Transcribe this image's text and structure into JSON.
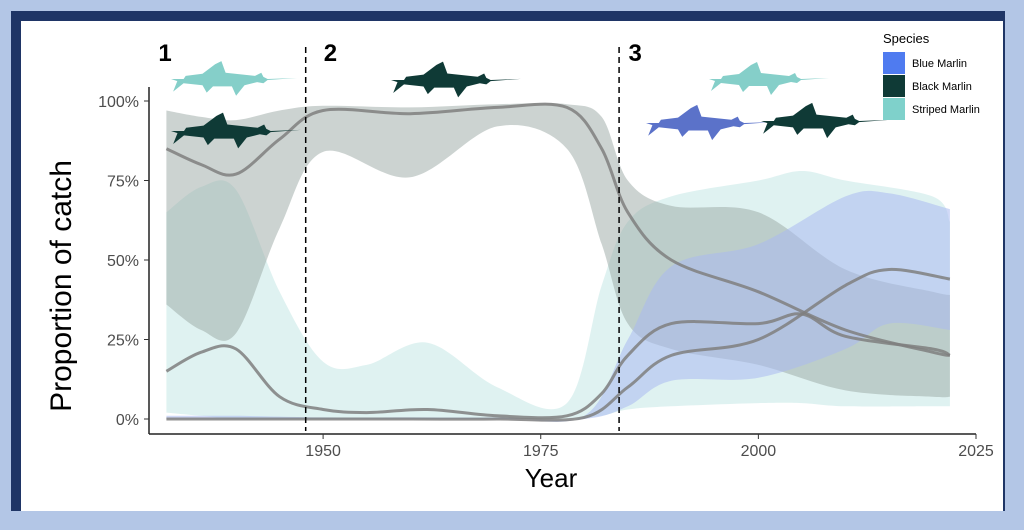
{
  "chart_data": {
    "type": "area",
    "title": "",
    "xlabel": "Year",
    "ylabel": "Proportion of catch",
    "xlim": [
      1930,
      2025
    ],
    "ylim": [
      0,
      1
    ],
    "x_ticks": [
      1950,
      1975,
      2000,
      2025
    ],
    "x_tick_labels": [
      "1950",
      "1975",
      "2000",
      "2025"
    ],
    "y_ticks": [
      0,
      0.25,
      0.5,
      0.75,
      1.0
    ],
    "y_tick_labels": [
      "0%",
      "25%",
      "50%",
      "75%",
      "100%"
    ],
    "grid": false,
    "legend": {
      "title": "Species",
      "placement": "top-right",
      "entries": [
        "Blue Marlin",
        "Black Marlin",
        "Striped Marlin"
      ]
    },
    "period_breaks": [
      1948,
      1984
    ],
    "period_labels": [
      {
        "label": "1",
        "x": 1932
      },
      {
        "label": "2",
        "x": 1951
      },
      {
        "label": "3",
        "x": 1986
      }
    ],
    "series": [
      {
        "name": "Blue Marlin",
        "color": "#5b7fe0",
        "x": [
          1932,
          1940,
          1950,
          1960,
          1970,
          1980,
          1985,
          1990,
          2000,
          2010,
          2015,
          2022
        ],
        "mean": [
          0.0,
          0.0,
          0.0,
          0.0,
          0.0,
          0.005,
          0.1,
          0.2,
          0.25,
          0.42,
          0.47,
          0.44
        ],
        "lower": [
          0.0,
          0.0,
          0.0,
          0.0,
          0.0,
          0.0,
          0.04,
          0.12,
          0.13,
          0.22,
          0.3,
          0.28
        ],
        "upper": [
          0.01,
          0.01,
          0.005,
          0.005,
          0.005,
          0.01,
          0.25,
          0.48,
          0.55,
          0.7,
          0.71,
          0.66
        ]
      },
      {
        "name": "Black Marlin",
        "color": "#24403f",
        "x": [
          1932,
          1936,
          1940,
          1945,
          1950,
          1960,
          1970,
          1978,
          1982,
          1985,
          1990,
          2000,
          2010,
          2020,
          2022
        ],
        "mean": [
          0.85,
          0.8,
          0.77,
          0.88,
          0.97,
          0.96,
          0.98,
          0.98,
          0.85,
          0.65,
          0.5,
          0.4,
          0.28,
          0.21,
          0.2
        ],
        "lower": [
          0.36,
          0.28,
          0.27,
          0.6,
          0.84,
          0.76,
          0.92,
          0.85,
          0.55,
          0.3,
          0.22,
          0.17,
          0.09,
          0.07,
          0.07
        ],
        "upper": [
          0.97,
          0.95,
          0.94,
          0.97,
          0.985,
          0.98,
          0.99,
          0.99,
          0.95,
          0.75,
          0.67,
          0.65,
          0.47,
          0.4,
          0.39
        ]
      },
      {
        "name": "Striped Marlin",
        "color": "#85cfc9",
        "x": [
          1932,
          1936,
          1940,
          1945,
          1950,
          1955,
          1962,
          1970,
          1978,
          1982,
          1985,
          1990,
          2000,
          2005,
          2010,
          2020,
          2022
        ],
        "mean": [
          0.15,
          0.21,
          0.22,
          0.07,
          0.03,
          0.02,
          0.03,
          0.01,
          0.01,
          0.08,
          0.2,
          0.3,
          0.3,
          0.33,
          0.26,
          0.22,
          0.2
        ],
        "lower": [
          0.02,
          0.01,
          0.0,
          0.0,
          0.0,
          0.0,
          0.0,
          0.0,
          0.0,
          0.01,
          0.03,
          0.04,
          0.05,
          0.05,
          0.04,
          0.04,
          0.04
        ],
        "upper": [
          0.65,
          0.73,
          0.72,
          0.4,
          0.18,
          0.17,
          0.24,
          0.1,
          0.05,
          0.42,
          0.62,
          0.7,
          0.75,
          0.78,
          0.75,
          0.7,
          0.62
        ]
      }
    ],
    "mean_line_color": "#7f7f7f"
  },
  "icons": {
    "fish_colors": {
      "striped": "#85cfc9",
      "black": "#0f3a36",
      "blue": "#5b72c9"
    }
  }
}
